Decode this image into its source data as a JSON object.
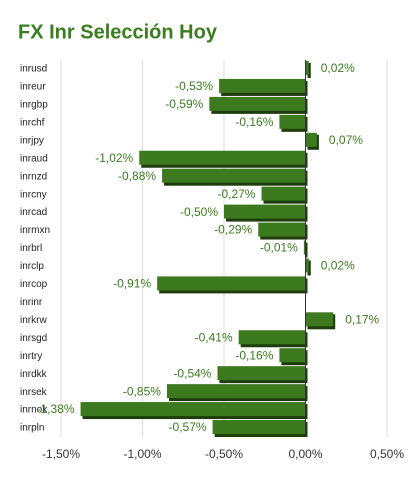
{
  "chart_data": {
    "type": "bar",
    "orientation": "horizontal",
    "title": "FX Inr Selección Hoy",
    "categories": [
      "inrusd",
      "inreur",
      "inrgbp",
      "inrchf",
      "inrjpy",
      "inraud",
      "inrnzd",
      "inrcny",
      "inrcad",
      "inrmxn",
      "inrbrl",
      "inrclp",
      "inrcop",
      "inrinr",
      "inrkrw",
      "inrsgd",
      "inrtry",
      "inrdkk",
      "inrsek",
      "inrnok",
      "inrpln"
    ],
    "values": [
      0.02,
      -0.53,
      -0.59,
      -0.16,
      0.07,
      -1.02,
      -0.88,
      -0.27,
      -0.5,
      -0.29,
      -0.01,
      0.02,
      -0.91,
      null,
      0.17,
      -0.41,
      -0.16,
      -0.54,
      -0.85,
      -1.38,
      -0.57
    ],
    "value_labels": [
      "0,02%",
      "-0,53%",
      "-0,59%",
      "-0,16%",
      "0,07%",
      "-1,02%",
      "-0,88%",
      "-0,27%",
      "-0,50%",
      "-0,29%",
      "-0,01%",
      "0,02%",
      "-0,91%",
      null,
      "0,17%",
      "-0,41%",
      "-0,16%",
      "-0,54%",
      "-0,85%",
      "-1,38%",
      "-0,57%"
    ],
    "color": "#3d7a1f",
    "xlim": [
      -1.5,
      0.5
    ],
    "xticks": [
      {
        "value": -1.5,
        "label": "-1,50%"
      },
      {
        "value": -1.0,
        "label": "-1,00%"
      },
      {
        "value": -0.5,
        "label": "-0,50%"
      },
      {
        "value": 0,
        "label": "0,00%"
      },
      {
        "value": 0.5,
        "label": "0,50%"
      }
    ],
    "grid": true
  }
}
